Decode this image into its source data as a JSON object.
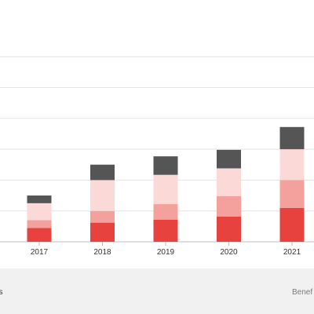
{
  "chart_data": {
    "type": "bar",
    "stacked": true,
    "categories": [
      "2017",
      "2018",
      "2019",
      "2020",
      "2021"
    ],
    "ylim": [
      0,
      8
    ],
    "gridlines": [
      0,
      1,
      2,
      3,
      4,
      5,
      6
    ],
    "series": [
      {
        "color": "#e8423f",
        "values": [
          0.45,
          0.62,
          0.72,
          0.82,
          1.1
        ]
      },
      {
        "color": "#f4a19d",
        "values": [
          0.25,
          0.38,
          0.5,
          0.66,
          0.9
        ]
      },
      {
        "color": "#fad9d7",
        "values": [
          0.55,
          1.0,
          0.95,
          0.9,
          1.0
        ]
      },
      {
        "color": "#555555",
        "values": [
          0.25,
          0.5,
          0.6,
          0.6,
          0.72
        ]
      }
    ]
  },
  "footer": {
    "left_text": "chs",
    "right_text": "Benef"
  }
}
